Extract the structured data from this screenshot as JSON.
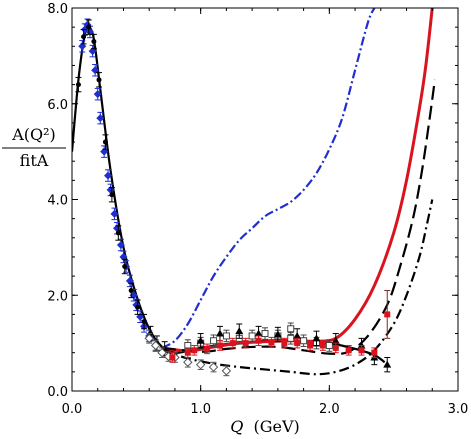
{
  "chart_data": {
    "type": "scatter",
    "title": "",
    "xlabel": {
      "var": "Q",
      "unit": "(GeV)"
    },
    "ylabel": {
      "numerator": "A(Q²)",
      "denominator": "fitA"
    },
    "xlim": [
      0.0,
      3.0
    ],
    "ylim": [
      0.0,
      8.0
    ],
    "x_ticks": [
      "0.0",
      "1.0",
      "2.0",
      "3.0"
    ],
    "y_ticks": [
      "0.0",
      "2.0",
      "4.0",
      "6.0",
      "8.0"
    ],
    "grid": false,
    "legend": "none",
    "colors": {
      "blue": "#1f2fcf",
      "red": "#d9141e",
      "black": "#000000",
      "darkred": "#7a2a2a"
    },
    "series": [
      {
        "style": "black-solid",
        "points": [
          [
            0.0,
            5.0
          ],
          [
            0.05,
            6.5
          ],
          [
            0.1,
            7.45
          ],
          [
            0.13,
            7.6
          ],
          [
            0.17,
            7.35
          ],
          [
            0.22,
            6.3
          ],
          [
            0.3,
            4.6
          ],
          [
            0.4,
            3.0
          ],
          [
            0.5,
            2.0
          ],
          [
            0.6,
            1.3
          ],
          [
            0.7,
            0.92
          ],
          [
            0.8,
            0.8
          ],
          [
            0.9,
            0.84
          ],
          [
            1.0,
            0.9
          ],
          [
            1.2,
            0.98
          ],
          [
            1.4,
            1.03
          ],
          [
            1.6,
            1.06
          ],
          [
            1.8,
            1.05
          ],
          [
            2.0,
            1.0
          ],
          [
            2.2,
            0.88
          ],
          [
            2.35,
            0.75
          ],
          [
            2.43,
            0.6
          ]
        ]
      },
      {
        "style": "blue-dashdot",
        "points": [
          [
            0.7,
            0.9
          ],
          [
            0.8,
            1.05
          ],
          [
            0.9,
            1.4
          ],
          [
            1.0,
            1.9
          ],
          [
            1.1,
            2.4
          ],
          [
            1.2,
            2.8
          ],
          [
            1.3,
            3.15
          ],
          [
            1.4,
            3.4
          ],
          [
            1.5,
            3.65
          ],
          [
            1.6,
            3.8
          ],
          [
            1.7,
            3.95
          ],
          [
            1.8,
            4.2
          ],
          [
            1.9,
            4.55
          ],
          [
            2.0,
            5.05
          ],
          [
            2.1,
            5.7
          ],
          [
            2.2,
            6.7
          ],
          [
            2.3,
            7.7
          ],
          [
            2.35,
            8.0
          ]
        ]
      },
      {
        "style": "red-solid",
        "points": [
          [
            0.7,
            0.9
          ],
          [
            0.9,
            0.84
          ],
          [
            1.1,
            0.92
          ],
          [
            1.3,
            1.0
          ],
          [
            1.5,
            1.03
          ],
          [
            1.7,
            1.05
          ],
          [
            1.9,
            1.04
          ],
          [
            2.05,
            1.1
          ],
          [
            2.2,
            1.5
          ],
          [
            2.35,
            2.2
          ],
          [
            2.5,
            3.3
          ],
          [
            2.6,
            4.4
          ],
          [
            2.7,
            5.9
          ],
          [
            2.75,
            6.8
          ],
          [
            2.8,
            8.0
          ]
        ]
      },
      {
        "style": "black-dashed",
        "points": [
          [
            0.7,
            0.9
          ],
          [
            1.0,
            0.82
          ],
          [
            1.2,
            0.88
          ],
          [
            1.4,
            0.92
          ],
          [
            1.6,
            0.92
          ],
          [
            1.8,
            0.85
          ],
          [
            2.0,
            0.78
          ],
          [
            2.15,
            0.82
          ],
          [
            2.3,
            1.15
          ],
          [
            2.45,
            1.8
          ],
          [
            2.55,
            2.6
          ],
          [
            2.65,
            3.6
          ],
          [
            2.72,
            4.6
          ],
          [
            2.78,
            5.7
          ],
          [
            2.82,
            6.5
          ]
        ]
      },
      {
        "style": "black-dashdot",
        "points": [
          [
            0.7,
            0.85
          ],
          [
            0.9,
            0.68
          ],
          [
            1.1,
            0.57
          ],
          [
            1.3,
            0.5
          ],
          [
            1.5,
            0.45
          ],
          [
            1.7,
            0.4
          ],
          [
            1.9,
            0.35
          ],
          [
            2.05,
            0.4
          ],
          [
            2.2,
            0.55
          ],
          [
            2.35,
            0.85
          ],
          [
            2.5,
            1.4
          ],
          [
            2.6,
            2.0
          ],
          [
            2.7,
            2.8
          ],
          [
            2.76,
            3.5
          ],
          [
            2.8,
            4.0
          ]
        ]
      }
    ],
    "data_points": {
      "blue_diamonds": [
        [
          0.08,
          7.2
        ],
        [
          0.1,
          7.55
        ],
        [
          0.12,
          7.65
        ],
        [
          0.14,
          7.5
        ],
        [
          0.16,
          7.1
        ],
        [
          0.18,
          6.7
        ],
        [
          0.2,
          6.2
        ],
        [
          0.22,
          5.7
        ],
        [
          0.25,
          5.0
        ],
        [
          0.28,
          4.5
        ],
        [
          0.3,
          4.2
        ],
        [
          0.33,
          3.7
        ],
        [
          0.35,
          3.4
        ],
        [
          0.38,
          3.05
        ],
        [
          0.4,
          2.8
        ],
        [
          0.42,
          2.6
        ],
        [
          0.45,
          2.3
        ],
        [
          0.48,
          2.0
        ],
        [
          0.5,
          1.8
        ],
        [
          0.53,
          1.55
        ],
        [
          0.56,
          1.35
        ],
        [
          0.6,
          1.15
        ],
        [
          0.65,
          0.95
        ]
      ],
      "black_circles": [
        [
          0.05,
          6.4
        ],
        [
          0.09,
          7.4
        ],
        [
          0.13,
          7.6
        ],
        [
          0.17,
          7.3
        ],
        [
          0.21,
          6.5
        ],
        [
          0.26,
          5.2
        ],
        [
          0.31,
          4.1
        ],
        [
          0.36,
          3.3
        ],
        [
          0.41,
          2.6
        ],
        [
          0.46,
          2.1
        ],
        [
          0.51,
          1.75
        ],
        [
          0.56,
          1.45
        ],
        [
          0.61,
          1.2
        ],
        [
          0.66,
          1.0
        ],
        [
          0.72,
          0.88
        ]
      ],
      "open_diamonds": [
        [
          0.6,
          1.1
        ],
        [
          0.65,
          0.95
        ],
        [
          0.7,
          0.8
        ],
        [
          0.75,
          0.72
        ],
        [
          0.8,
          0.7
        ],
        [
          0.9,
          0.6
        ],
        [
          1.0,
          0.55
        ],
        [
          1.1,
          0.5
        ],
        [
          1.2,
          0.42
        ]
      ],
      "open_squares": [
        [
          0.9,
          0.95
        ],
        [
          1.0,
          1.0
        ],
        [
          1.1,
          1.05
        ],
        [
          1.2,
          1.15
        ],
        [
          1.3,
          1.1
        ],
        [
          1.4,
          1.15
        ],
        [
          1.5,
          1.2
        ],
        [
          1.6,
          1.15
        ],
        [
          1.7,
          1.1
        ],
        [
          1.8,
          1.05
        ],
        [
          1.9,
          1.0
        ],
        [
          2.0,
          0.95
        ],
        [
          1.7,
          1.3
        ]
      ],
      "red_squares": [
        [
          0.78,
          0.7
        ],
        [
          0.9,
          0.8
        ],
        [
          0.95,
          0.85
        ],
        [
          1.05,
          0.88
        ],
        [
          1.15,
          0.95
        ],
        [
          1.25,
          1.0
        ],
        [
          1.35,
          1.0
        ],
        [
          1.45,
          1.05
        ],
        [
          1.55,
          1.02
        ],
        [
          1.65,
          1.0
        ],
        [
          1.75,
          1.0
        ],
        [
          1.85,
          0.95
        ],
        [
          1.95,
          0.95
        ],
        [
          2.05,
          0.9
        ],
        [
          2.15,
          0.85
        ],
        [
          2.25,
          0.85
        ],
        [
          2.35,
          0.8
        ]
      ],
      "black_triangles": [
        [
          1.0,
          1.05
        ],
        [
          1.15,
          1.2
        ],
        [
          1.3,
          1.25
        ],
        [
          1.45,
          1.2
        ],
        [
          1.6,
          1.18
        ],
        [
          1.75,
          1.15
        ],
        [
          1.9,
          1.1
        ],
        [
          2.05,
          1.05
        ],
        [
          2.25,
          0.95
        ],
        [
          2.35,
          0.7
        ],
        [
          2.45,
          0.55
        ]
      ],
      "red_errorbar": {
        "x": 2.45,
        "y": 1.6,
        "yerr_low": 0.5,
        "yerr_high": 0.5
      }
    }
  }
}
